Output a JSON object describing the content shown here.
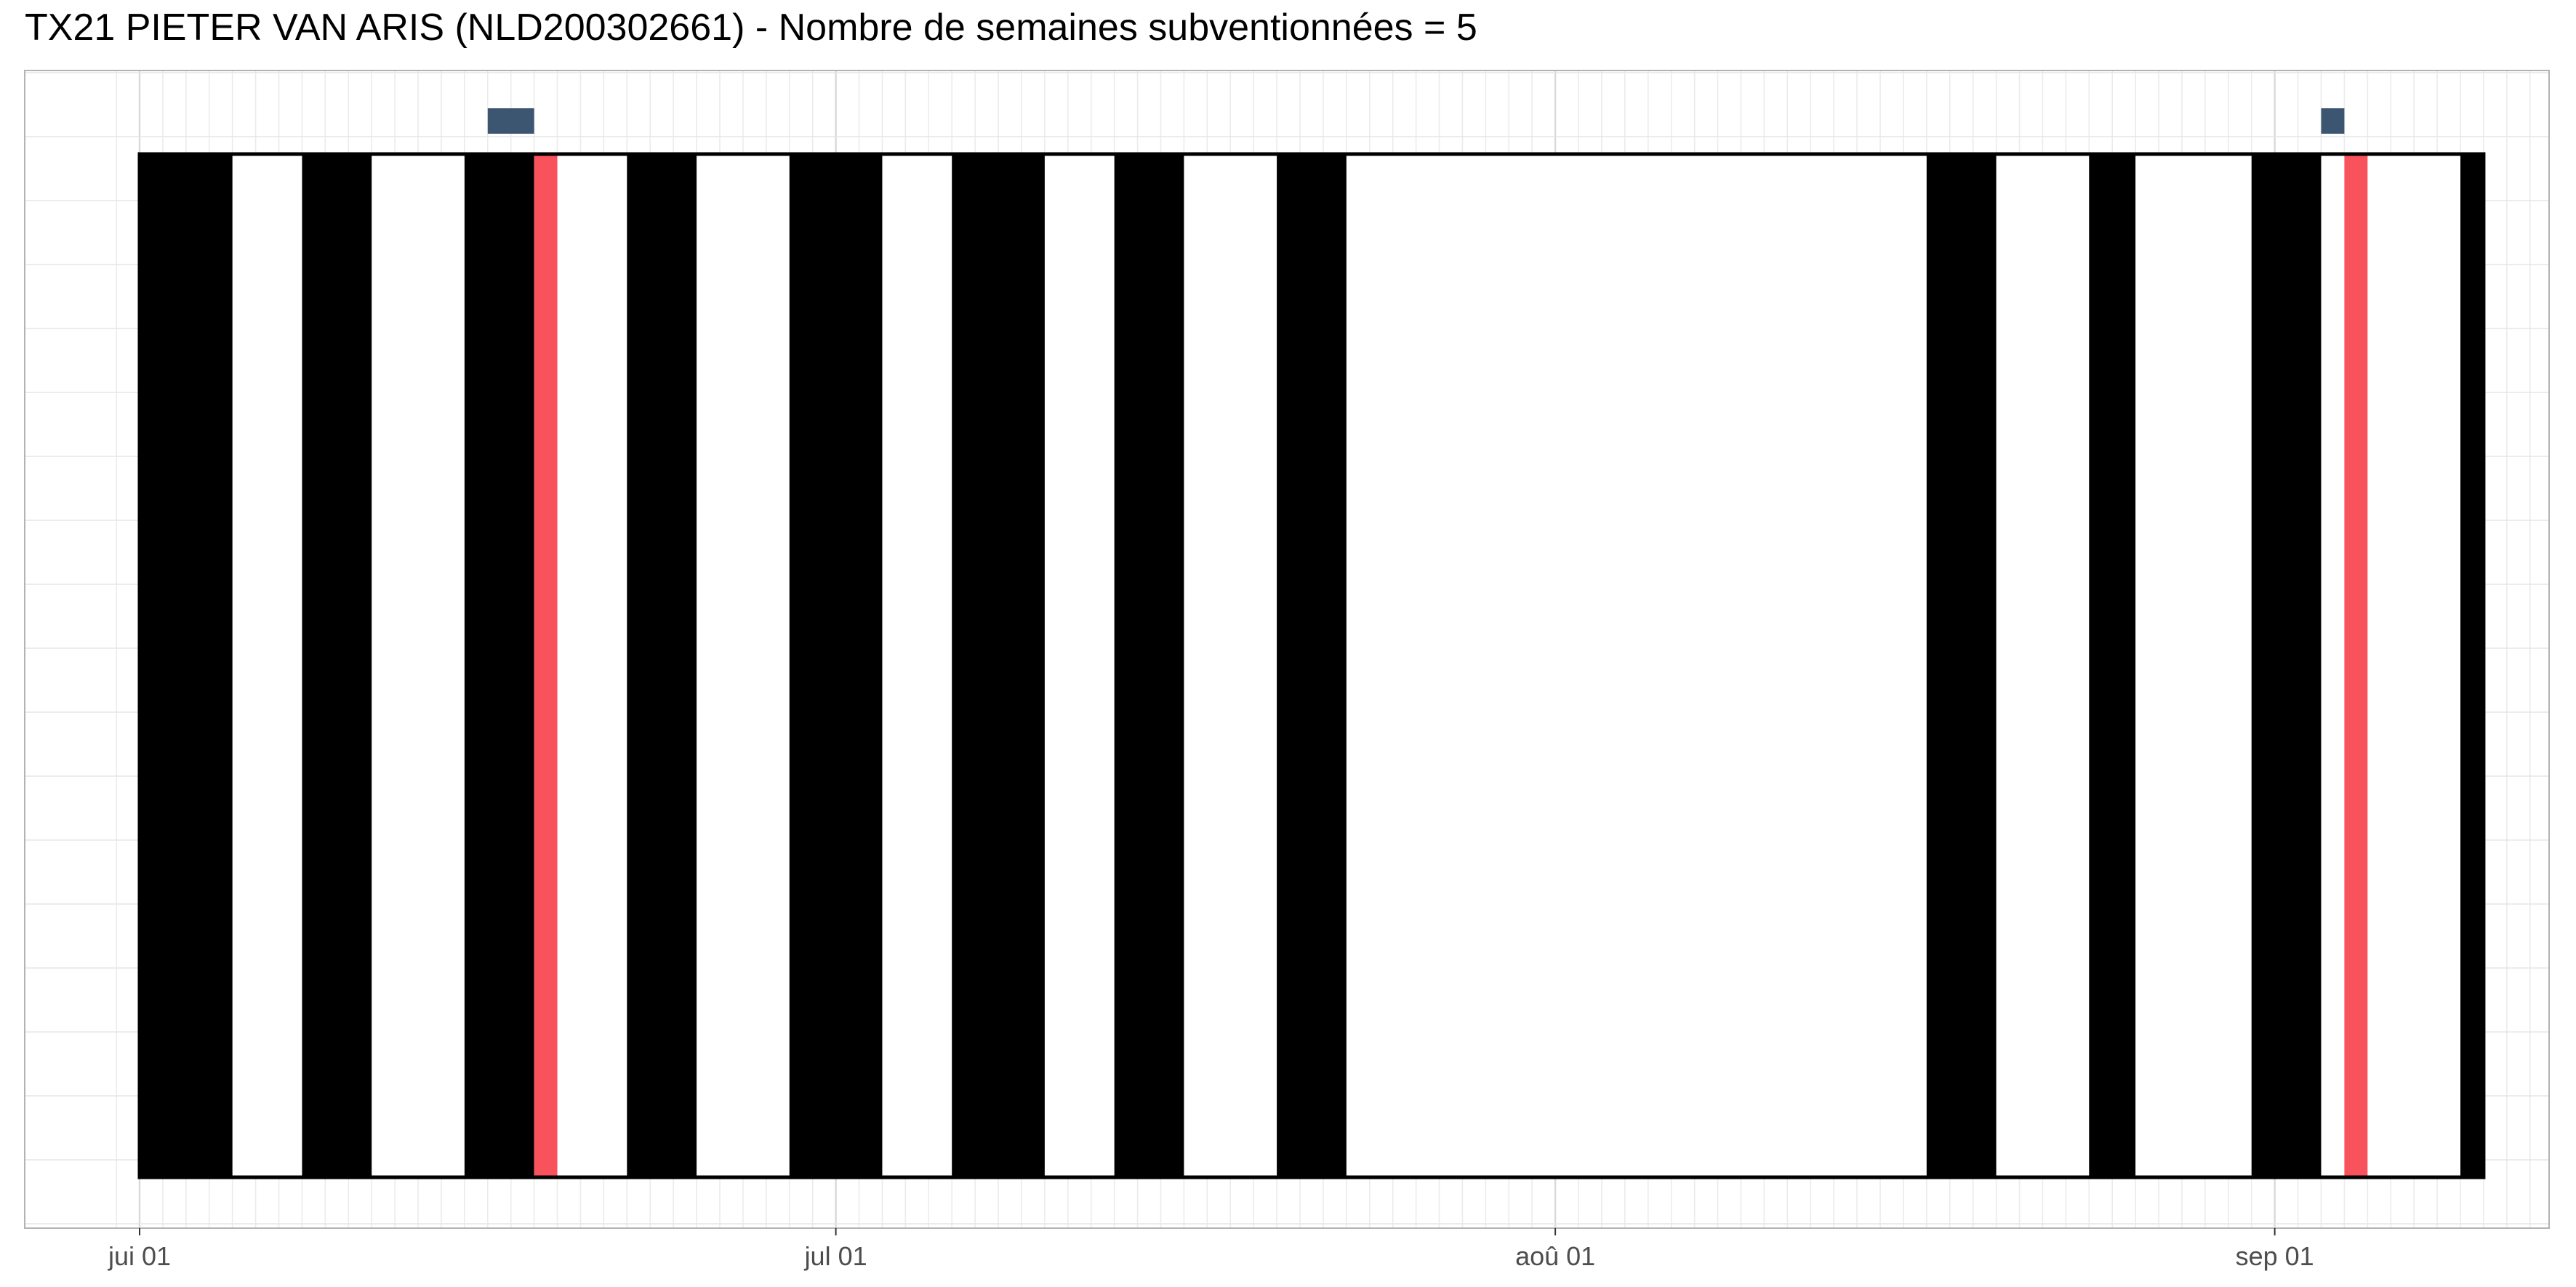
{
  "chart_data": {
    "type": "timeline",
    "title": "TX21 PIETER VAN ARIS (NLD200302661) - Nombre de semaines subventionnées = 5",
    "xlabel": "",
    "ylabel": "",
    "x_range": [
      "2023-05-31",
      "2023-09-25"
    ],
    "x_ticks": [
      {
        "date": "2023-06-01",
        "label": "jui 01"
      },
      {
        "date": "2023-07-01",
        "label": "jul 01"
      },
      {
        "date": "2023-08-01",
        "label": "aoû 01"
      },
      {
        "date": "2023-09-01",
        "label": "sep 01"
      }
    ],
    "grid": "daily gridlines, light grey",
    "background_band": {
      "start": "2023-06-01",
      "end": "2023-09-10",
      "color": "#ffffff",
      "border": "#000000"
    },
    "periods": [
      {
        "start": "2023-06-01",
        "end": "2023-06-05",
        "color": "#000000"
      },
      {
        "start": "2023-06-08",
        "end": "2023-06-11",
        "color": "#000000"
      },
      {
        "start": "2023-06-15",
        "end": "2023-06-18",
        "color": "#000000"
      },
      {
        "start": "2023-06-18",
        "end": "2023-06-19",
        "color": "#f8535c"
      },
      {
        "start": "2023-06-22",
        "end": "2023-06-25",
        "color": "#000000"
      },
      {
        "start": "2023-06-29",
        "end": "2023-07-03",
        "color": "#000000"
      },
      {
        "start": "2023-07-06",
        "end": "2023-07-10",
        "color": "#000000"
      },
      {
        "start": "2023-07-13",
        "end": "2023-07-16",
        "color": "#000000"
      },
      {
        "start": "2023-07-20",
        "end": "2023-07-23",
        "color": "#000000"
      },
      {
        "start": "2023-08-17",
        "end": "2023-08-20",
        "color": "#000000"
      },
      {
        "start": "2023-08-24",
        "end": "2023-08-26",
        "color": "#000000"
      },
      {
        "start": "2023-08-31",
        "end": "2023-09-03",
        "color": "#000000"
      },
      {
        "start": "2023-09-04",
        "end": "2023-09-05",
        "color": "#f8535c"
      },
      {
        "start": "2023-09-09",
        "end": "2023-09-10",
        "color": "#000000"
      }
    ],
    "markers": [
      {
        "start": "2023-06-16",
        "end": "2023-06-18",
        "color": "#3c5570"
      },
      {
        "start": "2023-09-03",
        "end": "2023-09-04",
        "color": "#3c5570"
      }
    ]
  }
}
